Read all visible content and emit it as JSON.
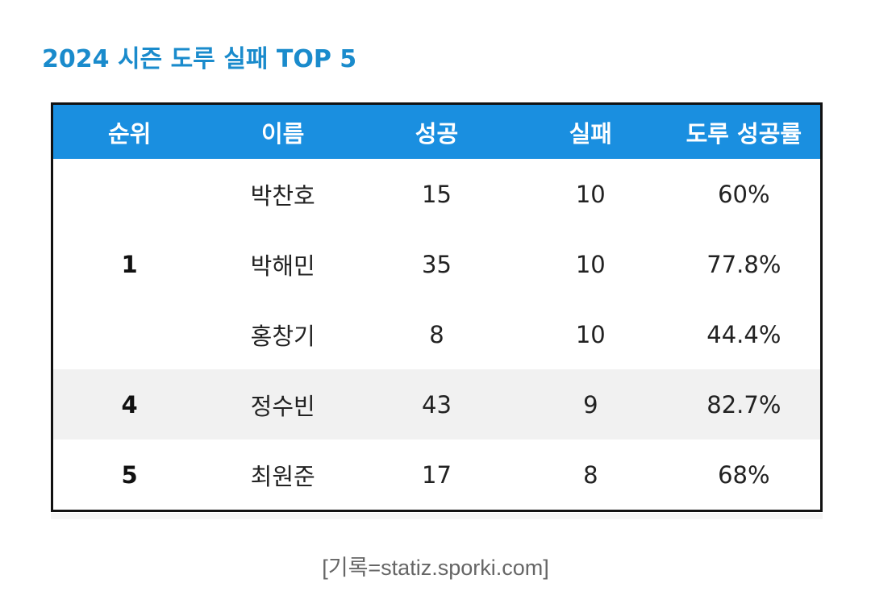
{
  "title": "2024 시즌 도루 실패 TOP 5",
  "table": {
    "header": [
      "순위",
      "이름",
      "성공",
      "실패",
      "도루 성공률"
    ],
    "groups": [
      {
        "rank": "1",
        "rows": [
          [
            "박찬호",
            "15",
            "10",
            "60%"
          ],
          [
            "박해민",
            "35",
            "10",
            "77.8%"
          ],
          [
            "홍창기",
            "8",
            "10",
            "44.4%"
          ]
        ]
      },
      {
        "rank": "4",
        "rows": [
          [
            "정수빈",
            "43",
            "9",
            "82.7%"
          ]
        ]
      },
      {
        "rank": "5",
        "rows": [
          [
            "최원준",
            "17",
            "8",
            "68%"
          ]
        ]
      }
    ]
  },
  "source": "[기록=statiz.sporki.com]"
}
